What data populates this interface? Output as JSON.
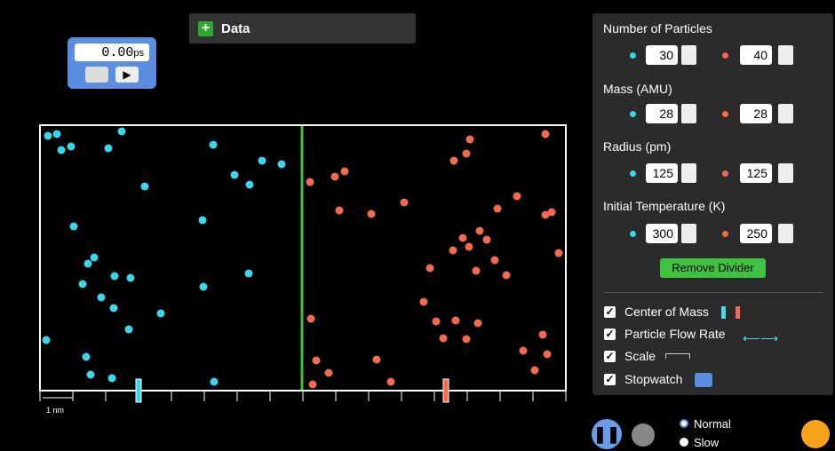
{
  "data_panel": {
    "title": "Data"
  },
  "stopwatch": {
    "time": "0.00",
    "unit": "ps"
  },
  "scale": {
    "label": "1 nm"
  },
  "controls": {
    "particles": {
      "label": "Number of Particles",
      "light": "30",
      "heavy": "40"
    },
    "mass": {
      "label": "Mass (AMU)",
      "light": "28",
      "heavy": "28"
    },
    "radius": {
      "label": "Radius (pm)",
      "light": "125",
      "heavy": "125"
    },
    "temperature": {
      "label": "Initial Temperature (K)",
      "light": "300",
      "heavy": "250"
    },
    "button": "Remove Divider",
    "options": [
      "Center of Mass",
      "Particle Flow Rate",
      "Scale",
      "Stopwatch"
    ]
  },
  "speed": {
    "normal": "Normal",
    "slow": "Slow"
  }
}
